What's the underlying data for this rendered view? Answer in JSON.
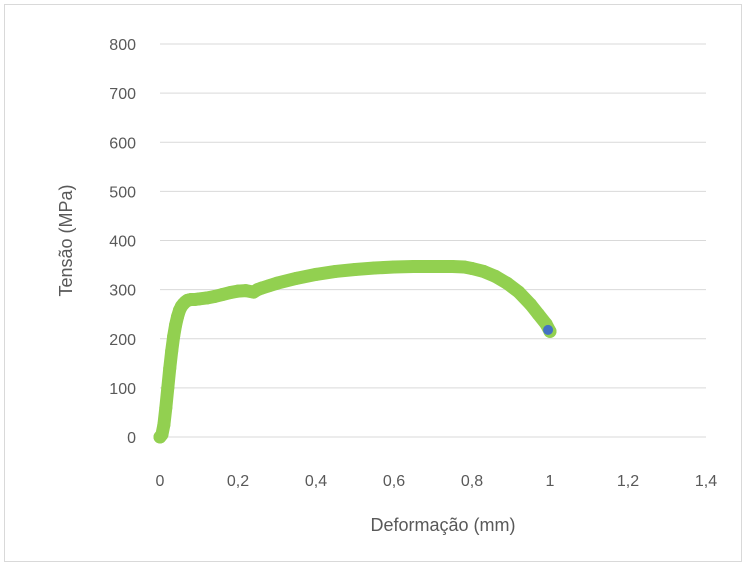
{
  "chart_data": {
    "type": "scatter",
    "title": "",
    "xlabel": "Deformação (mm)",
    "ylabel": "Tensão (MPa)",
    "xlim": [
      0,
      1.4
    ],
    "ylim": [
      0,
      800
    ],
    "x_ticks": [
      "0",
      "0,2",
      "0,4",
      "0,6",
      "0,8",
      "1",
      "1,2",
      "1,4"
    ],
    "y_ticks": [
      "0",
      "100",
      "200",
      "300",
      "400",
      "500",
      "600",
      "700",
      "800"
    ],
    "grid": "horizontal",
    "legend": "none",
    "colors": {
      "series": "#92d050",
      "end_point": "#4472c4",
      "grid": "#d9d9d9",
      "text": "#595959"
    },
    "series": [
      {
        "x": [
          0.0,
          0.005,
          0.01,
          0.015,
          0.02,
          0.025,
          0.03,
          0.035,
          0.04,
          0.045,
          0.05,
          0.055,
          0.06,
          0.065,
          0.07,
          0.075,
          0.08,
          0.085,
          0.09,
          0.1,
          0.12,
          0.14,
          0.16,
          0.18,
          0.2,
          0.22,
          0.24,
          0.25,
          0.26,
          0.28,
          0.3,
          0.35,
          0.4,
          0.45,
          0.5,
          0.55,
          0.6,
          0.65,
          0.7,
          0.75,
          0.78,
          0.8,
          0.83,
          0.86,
          0.89,
          0.92,
          0.95,
          0.97,
          0.99,
          1.0
        ],
        "y": [
          0,
          5,
          25,
          60,
          100,
          140,
          175,
          205,
          228,
          245,
          258,
          266,
          271,
          275,
          278,
          279,
          280,
          280,
          280,
          281,
          283,
          286,
          290,
          294,
          297,
          298,
          295,
          300,
          303,
          308,
          313,
          323,
          331,
          337,
          341,
          344,
          346,
          347,
          347,
          347,
          346,
          343,
          337,
          327,
          313,
          295,
          270,
          250,
          230,
          215
        ]
      },
      {
        "x": [
          0.995
        ],
        "y": [
          218
        ]
      }
    ]
  }
}
